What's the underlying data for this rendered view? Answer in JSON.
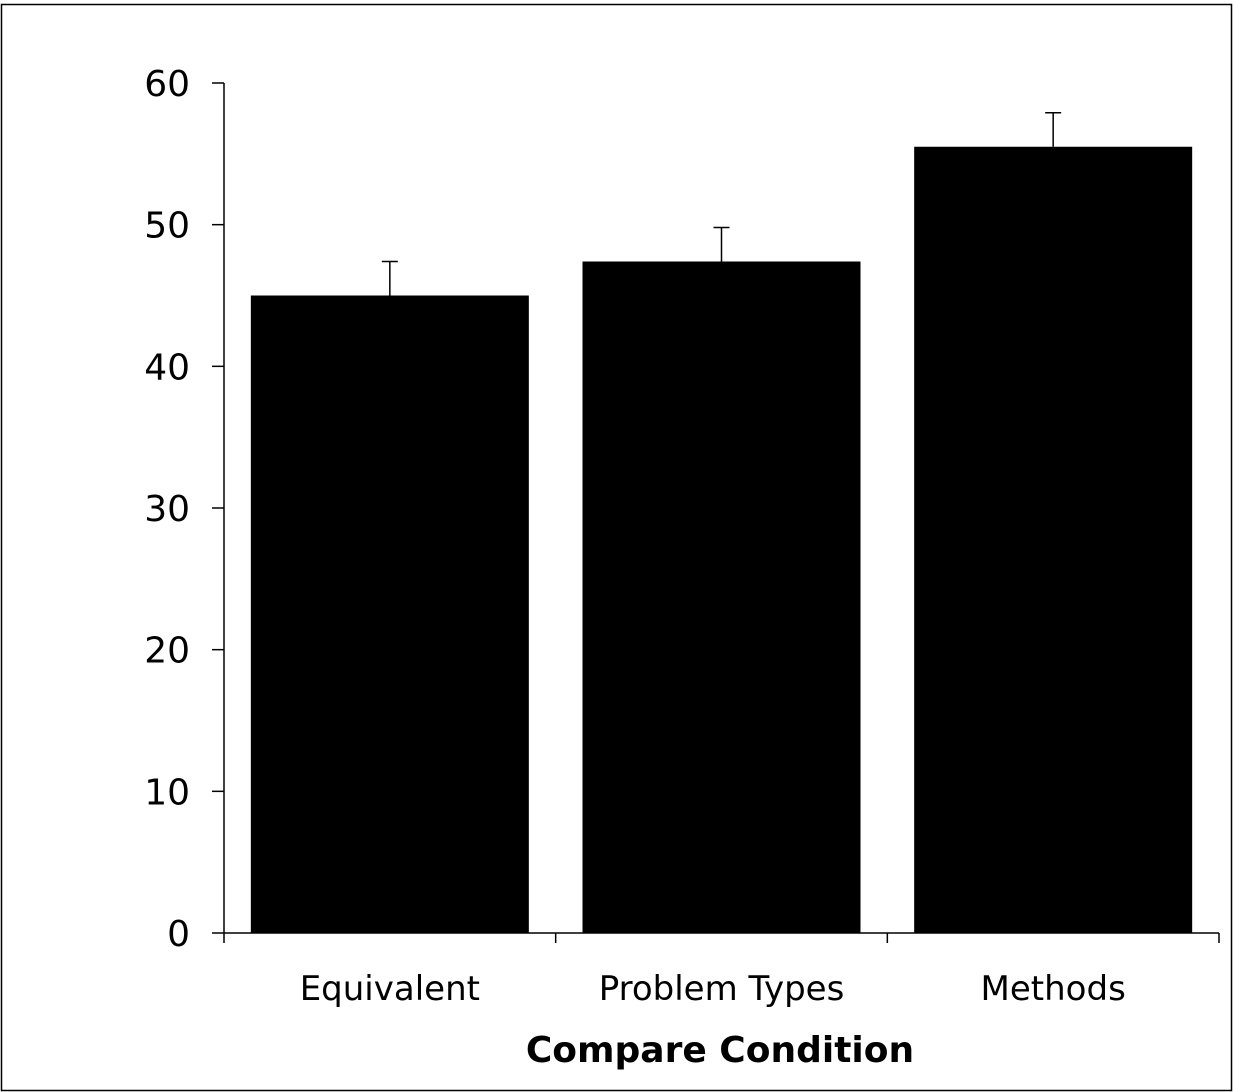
{
  "chart_data": {
    "type": "bar",
    "categories": [
      "Equivalent",
      "Problem Types",
      "Methods"
    ],
    "values": [
      45.0,
      47.4,
      55.5
    ],
    "error_upper": [
      2.4,
      2.4,
      2.4
    ],
    "title": "",
    "xlabel": "Compare Condition",
    "ylabel": "",
    "ylim": [
      0,
      60
    ],
    "yticks": [
      0,
      10,
      20,
      30,
      40,
      50,
      60
    ],
    "grid": false,
    "legend": "none",
    "colors": {
      "bar": "#000000",
      "axis": "#000000",
      "background": "#ffffff",
      "frame": "#000000"
    }
  }
}
